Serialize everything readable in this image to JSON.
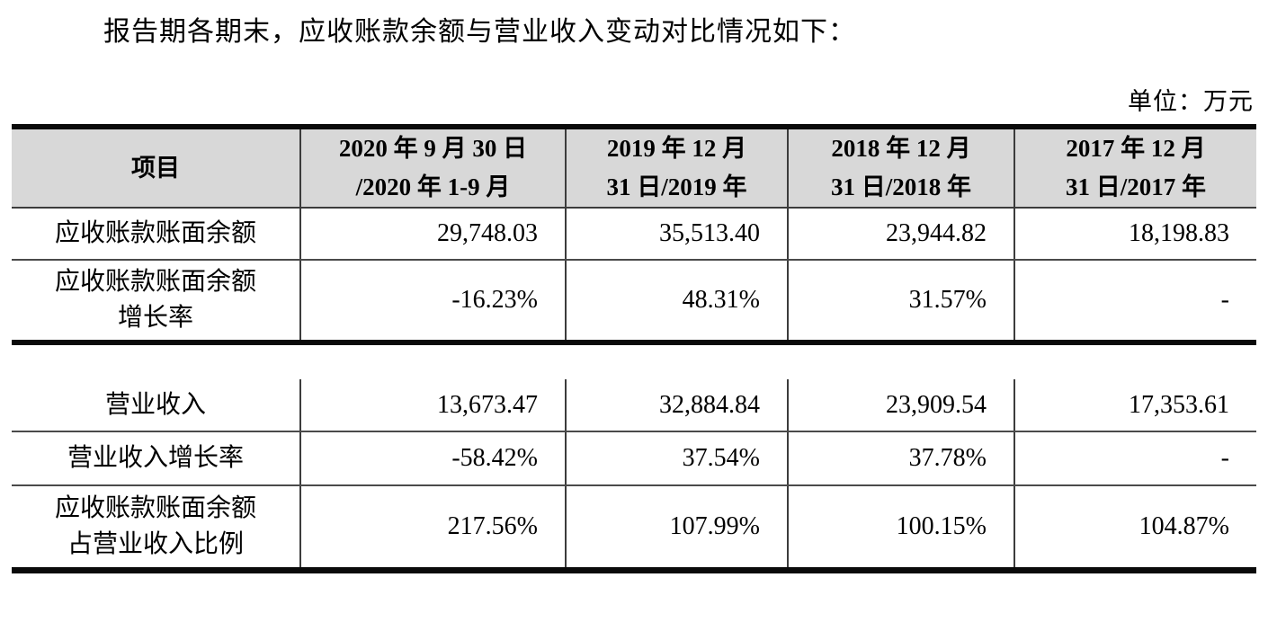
{
  "document": {
    "intro_text": "报告期各期末，应收账款余额与营业收入变动对比情况如下：",
    "unit_label": "单位：万元"
  },
  "colors": {
    "header_bg": "#d8d8d8",
    "thick_border": "#0a0a0a",
    "thin_border": "#4a4a4a"
  },
  "table": {
    "header": {
      "item": "项目",
      "period_2020": "2020 年 9 月 30 日\n/2020 年 1-9 月",
      "period_2019": "2019 年 12 月\n31 日/2019 年",
      "period_2018": "2018 年 12 月\n31 日/2018 年",
      "period_2017": "2017 年 12 月\n31 日/2017 年"
    },
    "section1": {
      "rows": [
        {
          "label": "应收账款账面余额",
          "values": [
            "29,748.03",
            "35,513.40",
            "23,944.82",
            "18,198.83"
          ]
        },
        {
          "label": "应收账款账面余额\n增长率",
          "values": [
            "-16.23%",
            "48.31%",
            "31.57%",
            "-"
          ]
        }
      ]
    },
    "section2": {
      "rows": [
        {
          "label": "营业收入",
          "values": [
            "13,673.47",
            "32,884.84",
            "23,909.54",
            "17,353.61"
          ]
        },
        {
          "label": "营业收入增长率",
          "values": [
            "-58.42%",
            "37.54%",
            "37.78%",
            "-"
          ]
        },
        {
          "label": "应收账款账面余额\n占营业收入比例",
          "values": [
            "217.56%",
            "107.99%",
            "100.15%",
            "104.87%"
          ]
        }
      ]
    }
  }
}
